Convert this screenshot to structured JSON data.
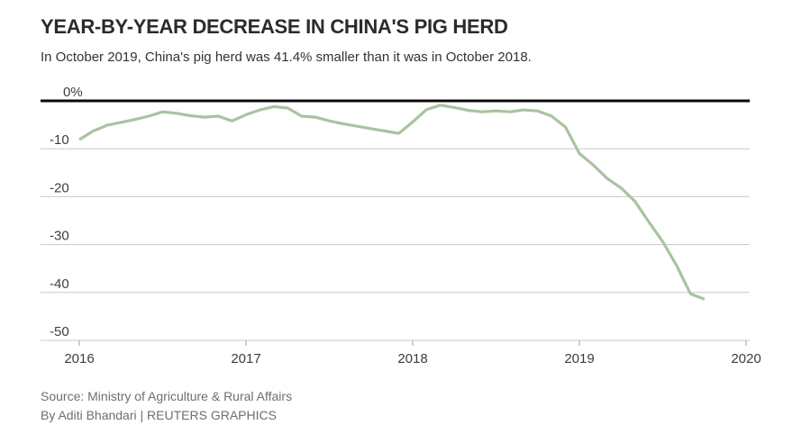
{
  "header": {
    "title": "YEAR-BY-YEAR DECREASE IN CHINA'S PIG HERD",
    "subtitle": "In October 2019, China's pig herd was 41.4% smaller than it was in October 2018."
  },
  "footer": {
    "source": "Source: Ministry of Agriculture & Rural Affairs",
    "byline": "By Aditi Bhandari | REUTERS GRAPHICS"
  },
  "colors": {
    "background": "#ffffff",
    "line": "#aac3a2",
    "zero_line": "#0a0a0a",
    "gridline": "#c9c9c9",
    "tick": "#a0a0a0",
    "axis_text": "#3d3d3d",
    "title_text": "#2b2b2b",
    "subtitle_text": "#333333",
    "source_text": "#6e6e6e"
  },
  "chart_data": {
    "type": "line",
    "title": "YEAR-BY-YEAR DECREASE IN CHINA'S PIG HERD",
    "subtitle": "In October 2019, China's pig herd was 41.4% smaller than it was in October 2018.",
    "series_name": "China pig herd, year-over-year % change",
    "x_unit": "month",
    "x": [
      "2016-01",
      "2016-02",
      "2016-03",
      "2016-04",
      "2016-05",
      "2016-06",
      "2016-07",
      "2016-08",
      "2016-09",
      "2016-10",
      "2016-11",
      "2016-12",
      "2017-01",
      "2017-02",
      "2017-03",
      "2017-04",
      "2017-05",
      "2017-06",
      "2017-07",
      "2017-08",
      "2017-09",
      "2017-10",
      "2017-11",
      "2017-12",
      "2018-01",
      "2018-02",
      "2018-03",
      "2018-04",
      "2018-05",
      "2018-06",
      "2018-07",
      "2018-08",
      "2018-09",
      "2018-10",
      "2018-11",
      "2018-12",
      "2019-01",
      "2019-02",
      "2019-03",
      "2019-04",
      "2019-05",
      "2019-06",
      "2019-07",
      "2019-08",
      "2019-09",
      "2019-10"
    ],
    "values": [
      -8.1,
      -6.3,
      -5.1,
      -4.5,
      -3.9,
      -3.2,
      -2.3,
      -2.6,
      -3.1,
      -3.4,
      -3.2,
      -4.2,
      -2.9,
      -1.9,
      -1.2,
      -1.5,
      -3.2,
      -3.4,
      -4.2,
      -4.8,
      -5.3,
      -5.8,
      -6.3,
      -6.8,
      -4.4,
      -1.8,
      -0.9,
      -1.4,
      -2.0,
      -2.3,
      -2.1,
      -2.3,
      -1.9,
      -2.1,
      -3.2,
      -5.5,
      -11.0,
      -13.4,
      -16.2,
      -18.2,
      -21.0,
      -25.3,
      -29.4,
      -34.4,
      -40.3,
      -41.4
    ],
    "final_value_label": "-41.4",
    "ylim": [
      -50,
      0
    ],
    "yticks": [
      {
        "label": "0%",
        "value": 0
      },
      {
        "label": "-10",
        "value": -10
      },
      {
        "label": "-20",
        "value": -20
      },
      {
        "label": "-30",
        "value": -30
      },
      {
        "label": "-40",
        "value": -40
      },
      {
        "label": "-50",
        "value": -50
      }
    ],
    "xticks": [
      {
        "label": "2016",
        "year": 2016
      },
      {
        "label": "2017",
        "year": 2017
      },
      {
        "label": "2018",
        "year": 2018
      },
      {
        "label": "2019",
        "year": 2019
      },
      {
        "label": "2020",
        "year": 2020
      }
    ],
    "grid": "horizontal",
    "legend": "none"
  }
}
